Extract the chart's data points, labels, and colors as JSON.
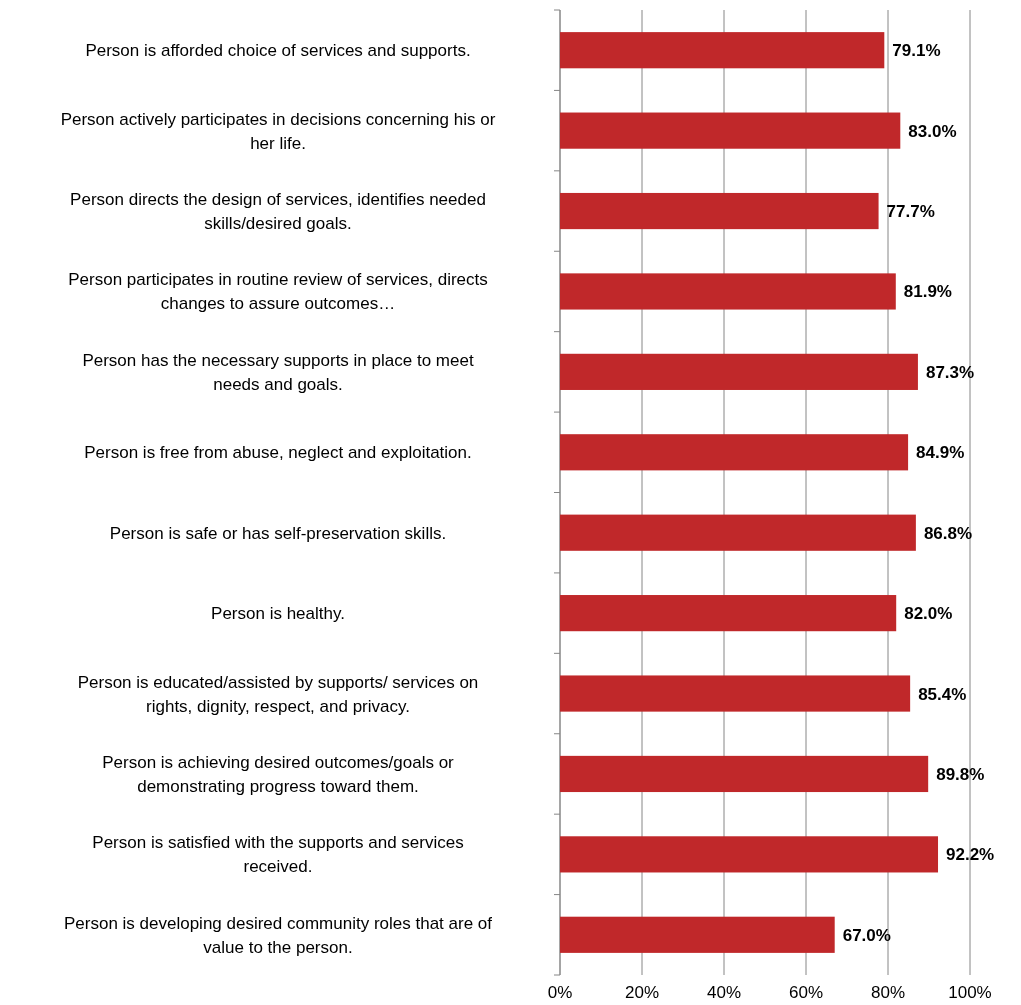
{
  "chart_data": {
    "type": "bar",
    "orientation": "horizontal",
    "categories": [
      "Person is afforded choice of services and supports.",
      "Person actively participates in decisions concerning his or her life.",
      "Person directs the design of services, identifies needed skills/desired goals.",
      "Person participates in routine review of services, directs changes to assure outcomes…",
      "Person has the necessary supports in place to meet needs and goals.",
      "Person is free from abuse, neglect and exploitation.",
      "Person is safe or has self-preservation skills.",
      "Person is healthy.",
      "Person is educated/assisted by supports/ services on rights, dignity, respect, and privacy.",
      "Person is achieving desired outcomes/goals or demonstrating progress toward them.",
      "Person is satisfied with the supports and services received.",
      "Person is developing desired community roles that are of value to the person."
    ],
    "values": [
      79.1,
      83.0,
      77.7,
      81.9,
      87.3,
      84.9,
      86.8,
      82.0,
      85.4,
      89.8,
      92.2,
      67.0
    ],
    "value_labels": [
      "79.1%",
      "83.0%",
      "77.7%",
      "81.9%",
      "87.3%",
      "84.9%",
      "86.8%",
      "82.0%",
      "85.4%",
      "89.8%",
      "92.2%",
      "67.0%"
    ],
    "color": "#c0282a",
    "xlim": [
      0,
      100
    ],
    "xticks": [
      {
        "value": 0,
        "label": "0%"
      },
      {
        "value": 20,
        "label": "20%"
      },
      {
        "value": 40,
        "label": "40%"
      },
      {
        "value": 60,
        "label": "60%"
      },
      {
        "value": 80,
        "label": "80%"
      },
      {
        "value": 100,
        "label": "100%"
      }
    ],
    "grid": "x"
  }
}
